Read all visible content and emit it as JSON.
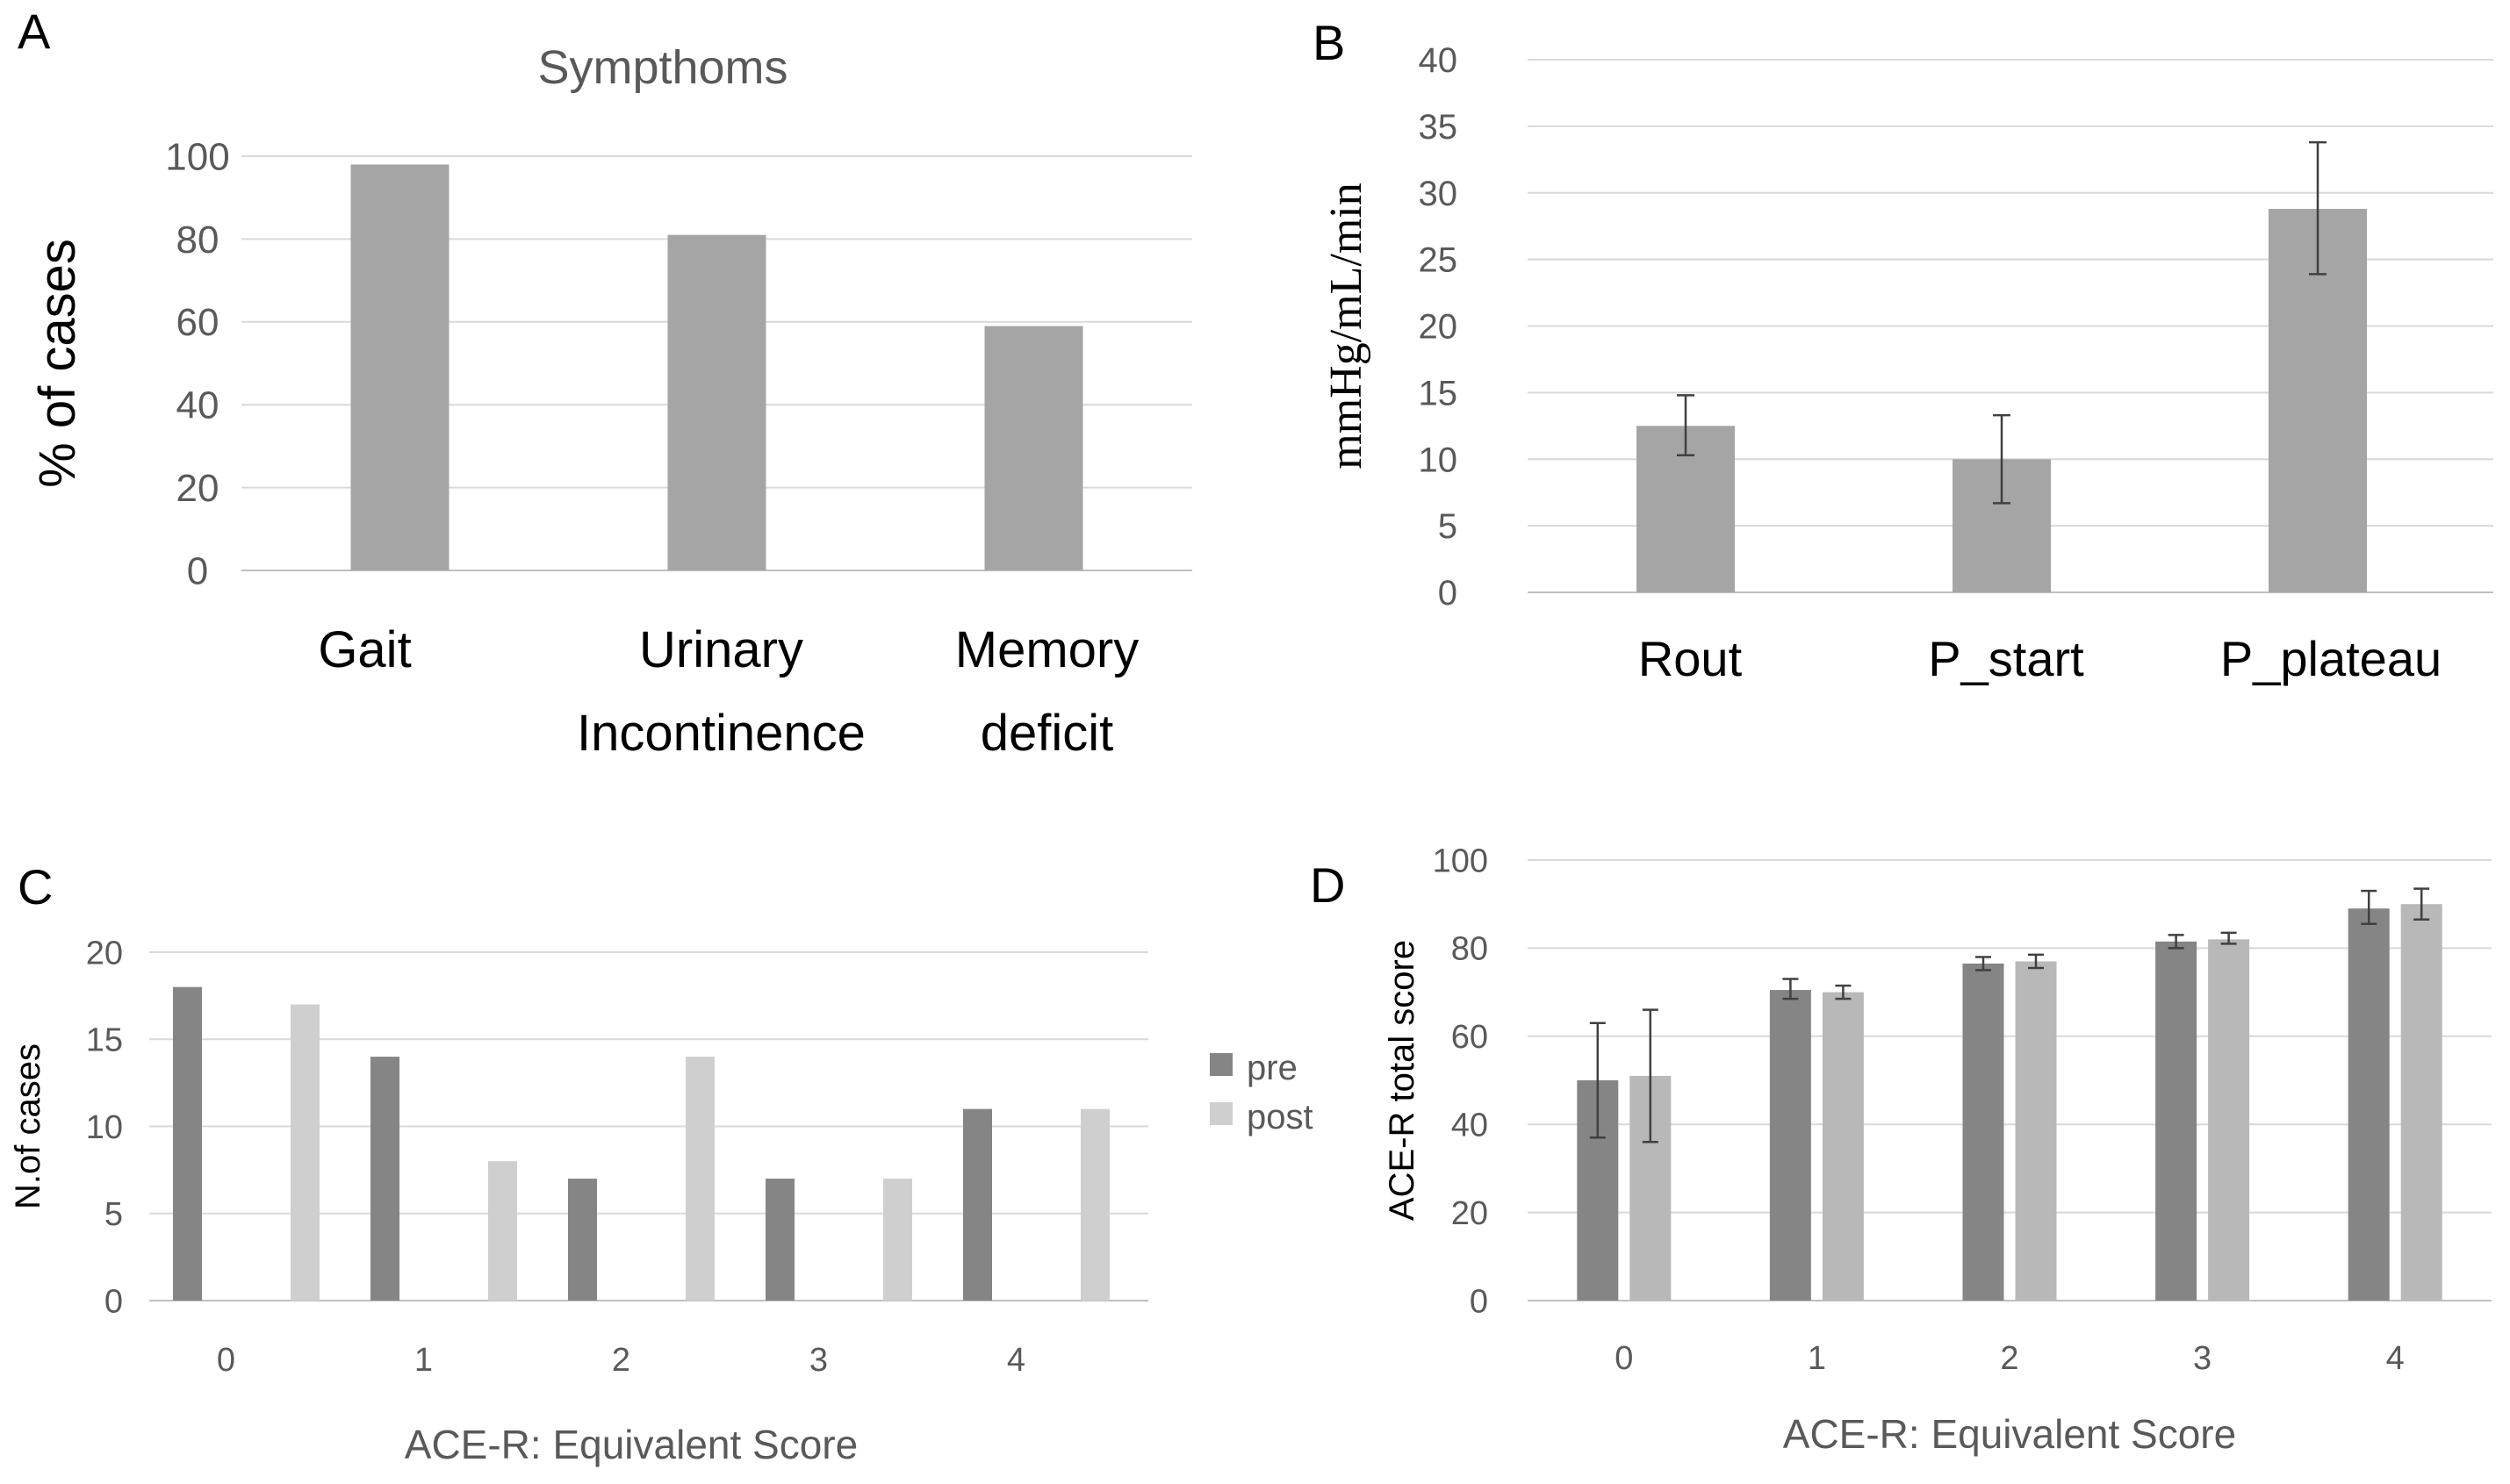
{
  "colors": {
    "bar_single": "#a5a5a5",
    "bar_pre": "#858585",
    "bar_post": "#cfcfcf",
    "bar_post_d": "#b8b8b8",
    "grid": "#d9d9d9",
    "axis": "#bfbfbf",
    "tick_text": "#595959",
    "label_text": "#000000",
    "error_bar": "#404040"
  },
  "chart_data": [
    {
      "panel": "A",
      "type": "bar",
      "title": "Sympthoms",
      "ylabel": "% of cases",
      "xlabel": "",
      "categories": [
        "Gait",
        "Urinary\nIncontinence",
        "Memory\ndeficit"
      ],
      "values": [
        98,
        81,
        59
      ],
      "ylim": [
        0,
        100
      ],
      "yticks": [
        0,
        20,
        40,
        60,
        80,
        100
      ],
      "grid": true
    },
    {
      "panel": "B",
      "type": "bar",
      "title": "",
      "ylabel": "mmHg/mL/min",
      "xlabel": "",
      "categories": [
        "Rout",
        "P_start",
        "P_plateau"
      ],
      "values": [
        12.5,
        10,
        28.8
      ],
      "errors_low": [
        10.3,
        6.7,
        23.9
      ],
      "errors_high": [
        14.8,
        13.3,
        33.8
      ],
      "ylim": [
        0,
        40
      ],
      "yticks": [
        0,
        5,
        10,
        15,
        20,
        25,
        30,
        35,
        40
      ],
      "grid": true
    },
    {
      "panel": "C",
      "type": "bar",
      "title": "",
      "ylabel": "N.of cases",
      "xlabel": "ACE-R: Equivalent Score",
      "categories": [
        "0",
        "1",
        "2",
        "3",
        "4"
      ],
      "series": [
        {
          "name": "pre",
          "values": [
            18,
            14,
            7,
            7,
            11
          ]
        },
        {
          "name": "post",
          "values": [
            17,
            8,
            14,
            7,
            11
          ]
        }
      ],
      "legend": "right",
      "ylim": [
        0,
        20
      ],
      "yticks": [
        0,
        5,
        10,
        15,
        20
      ],
      "grid": true
    },
    {
      "panel": "D",
      "type": "bar",
      "title": "",
      "ylabel": "ACE-R total score",
      "xlabel": "ACE-R: Equivalent Score",
      "categories": [
        "0",
        "1",
        "2",
        "3",
        "4"
      ],
      "series": [
        {
          "name": "pre",
          "values": [
            50,
            70.5,
            76.5,
            81.5,
            89
          ],
          "errors_low": [
            37,
            68.5,
            75,
            80,
            85.5
          ],
          "errors_high": [
            63,
            73,
            78,
            83,
            93
          ]
        },
        {
          "name": "post",
          "values": [
            51,
            70,
            77,
            82,
            90
          ],
          "errors_low": [
            36,
            68.5,
            75.5,
            81,
            86.5
          ],
          "errors_high": [
            66,
            71.5,
            78.5,
            83.5,
            93.5
          ]
        }
      ],
      "ylim": [
        0,
        100
      ],
      "yticks": [
        0,
        20,
        40,
        60,
        80,
        100
      ],
      "grid": true
    }
  ]
}
